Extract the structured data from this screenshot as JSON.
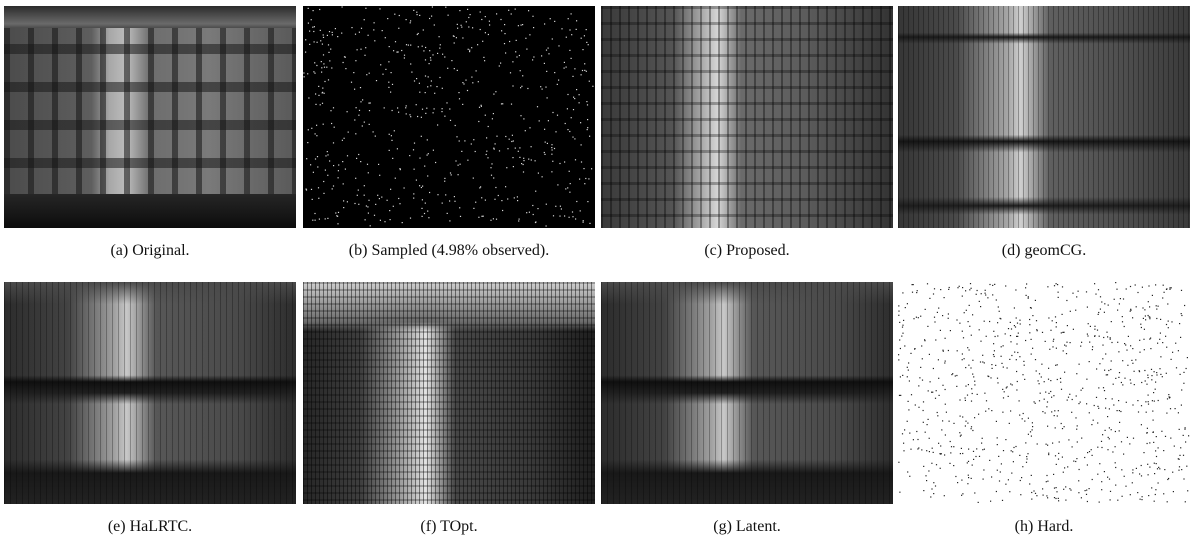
{
  "figure": {
    "panels": [
      {
        "id": "a",
        "caption": "(a) Original."
      },
      {
        "id": "b",
        "caption": "(b) Sampled (4.98% observed)."
      },
      {
        "id": "c",
        "caption": "(c) Proposed."
      },
      {
        "id": "d",
        "caption": "(d) geomCG."
      },
      {
        "id": "e",
        "caption": "(e) HaLRTC."
      },
      {
        "id": "f",
        "caption": "(f) TOpt."
      },
      {
        "id": "g",
        "caption": "(g) Latent."
      },
      {
        "id": "h",
        "caption": "(h) Hard."
      }
    ]
  }
}
